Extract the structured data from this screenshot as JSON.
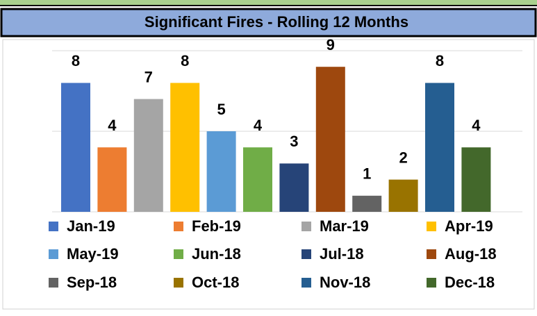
{
  "chart_data": {
    "type": "bar",
    "title": "Significant Fires - Rolling 12 Months",
    "categories": [
      "Jan-19",
      "Feb-19",
      "Mar-19",
      "Apr-19",
      "May-19",
      "Jun-18",
      "Jul-18",
      "Aug-18",
      "Sep-18",
      "Oct-18",
      "Nov-18",
      "Dec-18"
    ],
    "values": [
      8,
      4,
      7,
      8,
      5,
      4,
      3,
      9,
      1,
      2,
      8,
      4
    ],
    "colors": [
      "#4472c4",
      "#ed7d31",
      "#a5a5a5",
      "#ffc000",
      "#5b9bd5",
      "#70ad47",
      "#264478",
      "#9e480e",
      "#636363",
      "#997300",
      "#255e91",
      "#43682b"
    ],
    "ylim": [
      0,
      10
    ],
    "yticks": [
      0,
      5,
      10
    ],
    "grid": true
  }
}
